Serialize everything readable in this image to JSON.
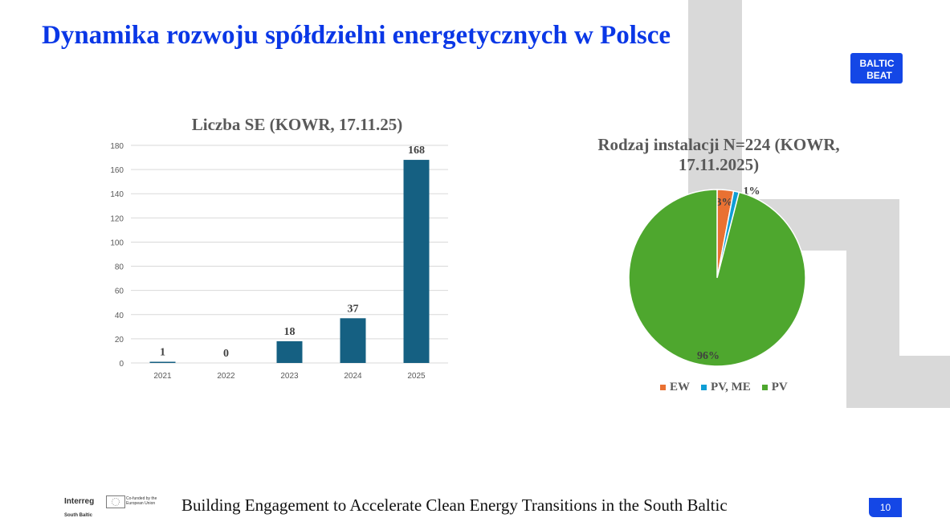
{
  "slide": {
    "title": "Dynamika rozwoju spółdzielni energetycznych w Polsce",
    "logo_line1": "BALTIC",
    "logo_line2": "BEAT",
    "footer": "Building Engagement to Accelerate Clean Energy Transitions in the South Baltic",
    "interreg": "Interreg",
    "interreg_sub": "South Baltic",
    "eu_text": "Co-funded by the European Union",
    "page_number": "10",
    "colors": {
      "title": "#0a37e6",
      "accent": "#1447e6",
      "decor": "#d9d9d9"
    }
  },
  "chart_data": [
    {
      "type": "bar",
      "title": "Liczba SE (KOWR, 17.11.25)",
      "categories": [
        "2021",
        "2022",
        "2023",
        "2024",
        "2025"
      ],
      "values": [
        1,
        0,
        18,
        37,
        168
      ],
      "data_labels": [
        "1",
        "0",
        "18",
        "37",
        "168"
      ],
      "yticks": [
        "0",
        "20",
        "40",
        "60",
        "80",
        "100",
        "120",
        "140",
        "160",
        "180"
      ],
      "ylim": [
        0,
        180
      ],
      "grid": true,
      "color": "#156082"
    },
    {
      "type": "pie",
      "title": "Rodzaj instalacji N=224 (KOWR, 17.11.2025)",
      "slices": [
        {
          "name": "EW",
          "value": 3,
          "label": "3%",
          "color": "#e97132"
        },
        {
          "name": "PV, ME",
          "value": 1,
          "label": "1%",
          "color": "#0f9ed5"
        },
        {
          "name": "PV",
          "value": 96,
          "label": "96%",
          "color": "#4ea72e"
        }
      ],
      "legend": "bottom"
    }
  ]
}
